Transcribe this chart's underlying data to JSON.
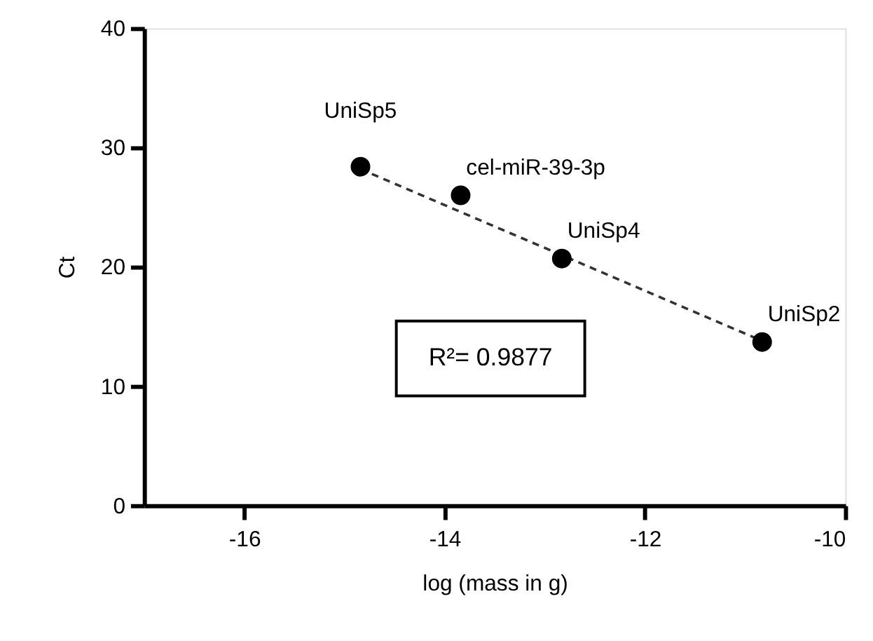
{
  "chart_data": {
    "type": "scatter",
    "xlabel": "log (mass in g)",
    "ylabel": "Ct",
    "xlim": [
      -17,
      -10
    ],
    "xticks": [
      -16,
      -14,
      -12,
      -10
    ],
    "ylim": [
      0,
      40
    ],
    "yticks": [
      0,
      10,
      20,
      30,
      40
    ],
    "grid": false,
    "series": [
      {
        "color": "#000000",
        "marker": "circle",
        "x": [
          -14.84,
          -13.84,
          -12.83,
          -10.83
        ],
        "values": [
          28.4,
          26.0,
          20.7,
          13.7
        ]
      },
      {
        "type": "line",
        "color": "#333333",
        "line_style": "dashed",
        "x": [
          -14.84,
          -10.83
        ],
        "values": [
          28.2,
          13.8
        ]
      }
    ],
    "annotations": [
      {
        "text": "UniSp5",
        "x": -14.84,
        "y": 28.4
      },
      {
        "text": "cel-miR-39-3p",
        "x": -13.84,
        "y": 26.0
      },
      {
        "text": "UniSp4",
        "x": -12.83,
        "y": 20.7
      },
      {
        "text": "UniSp2",
        "x": -10.83,
        "y": 13.7
      },
      "R²= 0.9877"
    ]
  }
}
